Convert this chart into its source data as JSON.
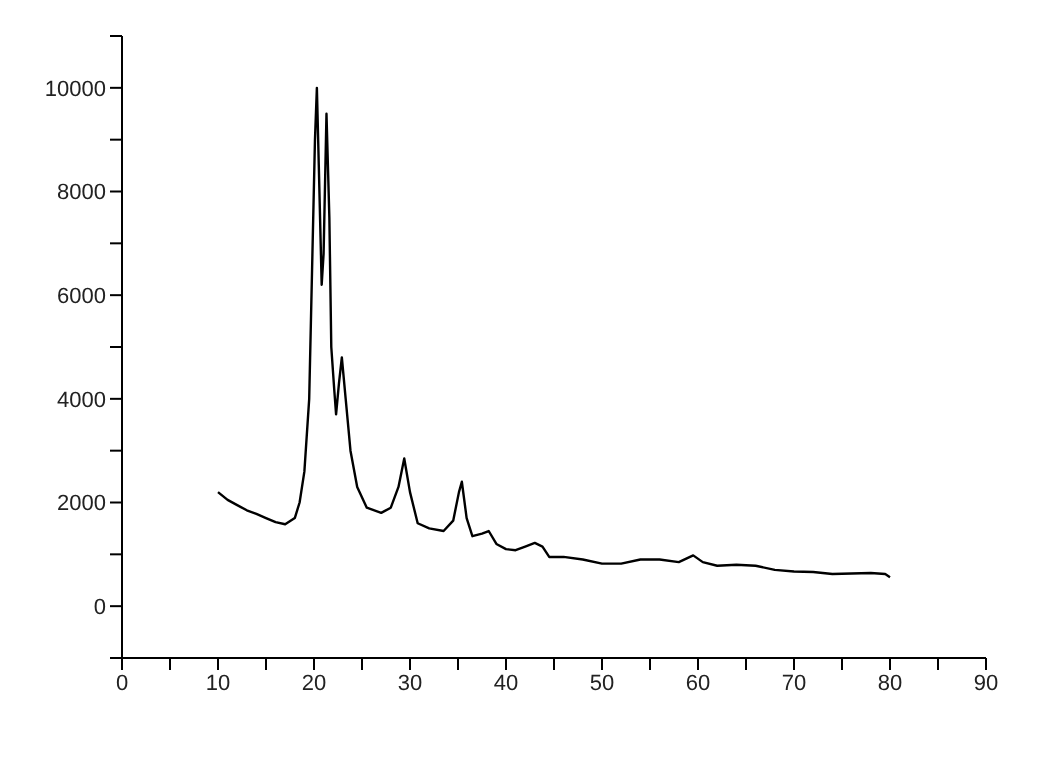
{
  "chart_data": {
    "type": "line",
    "x": [
      10,
      11,
      12,
      13,
      14,
      15,
      16,
      17,
      18,
      18.5,
      19,
      19.5,
      19.8,
      20.1,
      20.3,
      20.5,
      20.8,
      21.0,
      21.3,
      21.6,
      21.8,
      22.1,
      22.3,
      22.6,
      22.9,
      23.3,
      23.8,
      24.5,
      25.5,
      27,
      28,
      28.8,
      29.4,
      30,
      30.8,
      32,
      33.5,
      34.5,
      35.1,
      35.4,
      35.9,
      36.5,
      37.5,
      38.2,
      39,
      40,
      41,
      42,
      43,
      43.8,
      44.5,
      46,
      48,
      50,
      52,
      54,
      56,
      58,
      59.5,
      60.5,
      62,
      64,
      66,
      68,
      70,
      72,
      74,
      76,
      78,
      79.5,
      80
    ],
    "series": [
      {
        "color": "#000000",
        "values": [
          2200,
          2050,
          1950,
          1850,
          1780,
          1700,
          1620,
          1580,
          1700,
          2000,
          2600,
          4000,
          6500,
          9000,
          10000,
          8500,
          6200,
          6800,
          9500,
          7500,
          5000,
          4200,
          3700,
          4300,
          4800,
          4000,
          3000,
          2300,
          1900,
          1800,
          1900,
          2300,
          2850,
          2200,
          1600,
          1500,
          1450,
          1650,
          2200,
          2400,
          1700,
          1350,
          1400,
          1450,
          1200,
          1100,
          1080,
          1150,
          1220,
          1150,
          950,
          950,
          900,
          820,
          820,
          900,
          900,
          850,
          980,
          850,
          780,
          800,
          780,
          700,
          670,
          660,
          620,
          630,
          640,
          620,
          560
        ]
      }
    ],
    "xlim": [
      0,
      90
    ],
    "xticks": [
      0,
      {
        "value": 5,
        "label": null
      },
      10,
      {
        "value": 15,
        "label": null
      },
      20,
      {
        "value": 25,
        "label": null
      },
      30,
      {
        "value": 35,
        "label": null
      },
      40,
      {
        "value": 45,
        "label": null
      },
      50,
      {
        "value": 55,
        "label": null
      },
      60,
      {
        "value": 65,
        "label": null
      },
      70,
      {
        "value": 75,
        "label": null
      },
      80,
      {
        "value": 85,
        "label": null
      },
      90
    ],
    "ylim": [
      -1000,
      11000
    ],
    "yticks": [
      {
        "value": -1000,
        "label": null
      },
      0,
      {
        "value": 1000,
        "label": null
      },
      2000,
      {
        "value": 3000,
        "label": null
      },
      4000,
      {
        "value": 5000,
        "label": null
      },
      6000,
      {
        "value": 7000,
        "label": null
      },
      8000,
      {
        "value": 9000,
        "label": null
      },
      10000,
      {
        "value": 11000,
        "label": null
      }
    ],
    "grid": false,
    "legend": false,
    "marker": "none",
    "line_style": "solid"
  }
}
